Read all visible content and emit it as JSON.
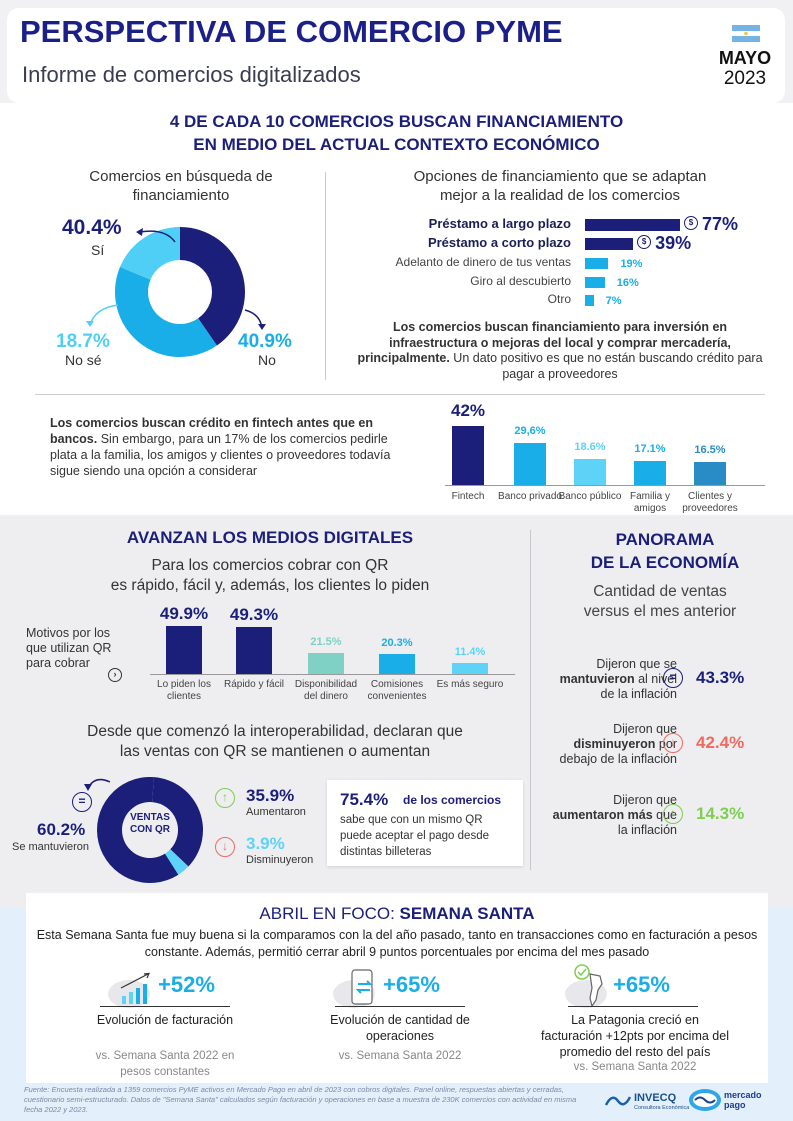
{
  "header": {
    "title": "PERSPECTIVA DE COMERCIO PYME",
    "subtitle": "Informe de comercios digitalizados",
    "month": "MAYO",
    "year": "2023"
  },
  "section1": {
    "headline_line1": "4 DE CADA 10 COMERCIOS BUSCAN FINANCIAMIENTO",
    "headline_line2": "EN MEDIO DEL ACTUAL CONTEXTO ECONÓMICO"
  },
  "donut1": {
    "title_line1": "Comercios en búsqueda de",
    "title_line2": "financiamiento",
    "slices": [
      {
        "label": "Sí",
        "value_text": "40.4%",
        "value": 40.4,
        "color": "#1b1f7a"
      },
      {
        "label": "No",
        "value_text": "40.9%",
        "value": 40.9,
        "color": "#19aee8"
      },
      {
        "label": "No sé",
        "value_text": "18.7%",
        "value": 18.7,
        "color": "#4fcff5"
      }
    ]
  },
  "hbar": {
    "title_line1": "Opciones de financiamiento que se adaptan",
    "title_line2": "mejor a la realidad de los comercios",
    "items": [
      {
        "label": "Préstamo a largo plazo",
        "value_text": "77%",
        "value": 77,
        "color": "#1b1f7a"
      },
      {
        "label": "Préstamo a corto plazo",
        "value_text": "39%",
        "value": 39,
        "color": "#1b1f7a"
      },
      {
        "label": "Adelanto de dinero de tus ventas",
        "value_text": "19%",
        "value": 19,
        "color": "#19aee8"
      },
      {
        "label": "Giro al descubierto",
        "value_text": "16%",
        "value": 16,
        "color": "#19aee8"
      },
      {
        "label": "Otro",
        "value_text": "7%",
        "value": 7,
        "color": "#19aee8"
      }
    ],
    "note_bold": "Los comercios buscan financiamiento para inversión en infraestructura o mejoras del local y comprar mercadería, principalmente.",
    "note_rest": " Un dato positivo es que no están buscando crédito para pagar a proveedores"
  },
  "credit": {
    "text_bold": "Los comercios buscan crédito en fintech antes que en bancos.",
    "text_rest": " Sin embargo, para un 17% de los comercios pedirle plata a la familia, los amigos y clientes o proveedores todavía sigue siendo una opción a considerar",
    "bars": [
      {
        "label": "Fintech",
        "value_text": "42%",
        "value": 42,
        "color": "#1b1f7a"
      },
      {
        "label": "Banco privado",
        "value_text": "29,6%",
        "value": 29.6,
        "color": "#19aee8"
      },
      {
        "label": "Banco público",
        "value_text": "18.6%",
        "value": 18.6,
        "color": "#5cd3f7"
      },
      {
        "label": "Familia y amigos",
        "value_text": "17.1%",
        "value": 17.1,
        "color": "#19aee8"
      },
      {
        "label": "Clientes y proveedores",
        "value_text": "16.5%",
        "value": 16.5,
        "color": "#2a8cc4"
      }
    ]
  },
  "digital": {
    "heading": "AVANZAN LOS MEDIOS DIGITALES",
    "subtitle_line1": "Para los comercios cobrar con QR",
    "subtitle_line2": "es rápido, fácil y, además, los clientes lo piden",
    "side_label": "Motivos por los que utilizan QR para cobrar",
    "bars": [
      {
        "label": "Lo piden los clientes",
        "value_text": "49.9%",
        "value": 49.9,
        "color": "#1b1f7a"
      },
      {
        "label": "Rápido y fácil",
        "value_text": "49.3%",
        "value": 49.3,
        "color": "#1b1f7a"
      },
      {
        "label": "Disponibilidad del dinero",
        "value_text": "21.5%",
        "value": 21.5,
        "color": "#7fd1c5"
      },
      {
        "label": "Comisiones convenientes",
        "value_text": "20.3%",
        "value": 20.3,
        "color": "#19aee8"
      },
      {
        "label": "Es más seguro",
        "value_text": "11.4%",
        "value": 11.4,
        "color": "#5cd3f7"
      }
    ],
    "interop_line1": "Desde que comenzó la interoperabilidad, declaran que",
    "interop_line2": "las ventas con QR se mantienen o aumentan",
    "donut": {
      "center_line1": "VENTAS",
      "center_line2": "CON QR",
      "slices": [
        {
          "label": "Se mantuvieron",
          "value_text": "60.2%",
          "value": 60.2,
          "color": "#1b1f7a"
        },
        {
          "label": "Aumentaron",
          "value_text": "35.9%",
          "value": 35.9,
          "color": "#1b1f7a"
        },
        {
          "label": "Disminuyeron",
          "value_text": "3.9%",
          "value": 3.9,
          "color": "#5cd3f7"
        }
      ]
    },
    "callout_value": "75.4%",
    "callout_title": "de los comercios",
    "callout_text": "sabe que con un mismo QR puede aceptar el pago desde distintas billeteras"
  },
  "economy": {
    "heading_line1": "PANORAMA",
    "heading_line2": "DE LA ECONOMÍA",
    "subtitle_line1": "Cantidad de ventas",
    "subtitle_line2": "versus el mes anterior",
    "items": [
      {
        "pre": "Dijeron que se",
        "bold": "mantuvieron",
        "post": "al nivel de la inflación",
        "value_text": "43.3%",
        "color": "#1b1f7a",
        "icon": "="
      },
      {
        "pre": "Dijeron que",
        "bold": "disminuyeron",
        "post": "por debajo de la inflación",
        "value_text": "42.4%",
        "color": "#f06a5f",
        "icon": "↓"
      },
      {
        "pre": "Dijeron que",
        "bold": "aumentaron más",
        "post": "que la inflación",
        "value_text": "14.3%",
        "color": "#7ccf4f",
        "icon": "↑"
      }
    ]
  },
  "easter": {
    "heading_pre": "ABRIL EN FOCO: ",
    "heading_bold": "SEMANA SANTA",
    "intro": "Esta Semana Santa fue muy buena si la comparamos con la del año pasado, tanto en transacciones como en facturación a pesos constante. Además, permitió cerrar abril 9 puntos porcentuales por encima del mes pasado",
    "stats": [
      {
        "value": "+52%",
        "label": "Evolución de facturación",
        "note": "vs. Semana Santa 2022 en pesos constantes"
      },
      {
        "value": "+65%",
        "label": "Evolución de cantidad de operaciones",
        "note": "vs. Semana Santa 2022"
      },
      {
        "value": "+65%",
        "label": "La Patagonia creció en facturación +12pts por encima del promedio del resto del país",
        "note": "vs. Semana Santa 2022"
      }
    ]
  },
  "footer": {
    "source": "Fuente: Encuesta realizada a 1359 comercios PyME activos en Mercado Pago en abril de 2023 con cobros digitales. Panel online, respuestas abiertas y cerradas, cuestionario semi-estructurado. Datos de \"Semana Santa\" calculados según facturación y operaciones en base a muestra de 230K comercios con actividad en misma fecha 2022 y 2023.",
    "logo1": "INVECQ",
    "logo1_sub": "Consultora Económica",
    "logo2_line1": "mercado",
    "logo2_line2": "pago"
  }
}
